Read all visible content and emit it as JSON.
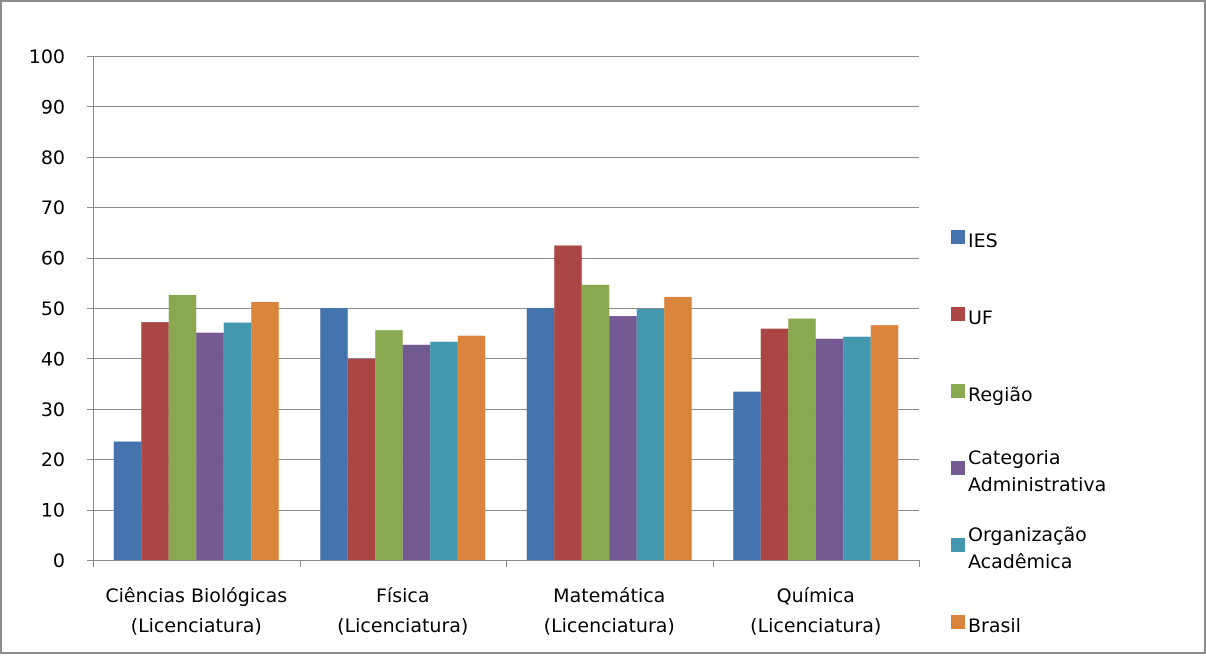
{
  "chart_data": {
    "type": "bar",
    "title": "",
    "xlabel": "",
    "ylabel": "",
    "ylim": [
      0,
      100
    ],
    "yticks": [
      0,
      10,
      20,
      30,
      40,
      50,
      60,
      70,
      80,
      90,
      100
    ],
    "grid": "horizontal",
    "legend_position": "right",
    "categories": [
      [
        "Ciências Biológicas",
        "(Licenciatura)"
      ],
      [
        "Física",
        "(Licenciatura)"
      ],
      [
        "Matemática",
        "(Licenciatura)"
      ],
      [
        "Química",
        "(Licenciatura)"
      ]
    ],
    "series": [
      {
        "name": [
          "IES"
        ],
        "color": "#4573AE",
        "values": [
          23.5,
          50.0,
          50.0,
          33.4
        ]
      },
      {
        "name": [
          "UF"
        ],
        "color": "#AA4644",
        "values": [
          47.2,
          39.9,
          62.4,
          45.9
        ]
      },
      {
        "name": [
          "Região"
        ],
        "color": "#8AA84F",
        "values": [
          52.6,
          45.6,
          54.6,
          47.9
        ]
      },
      {
        "name": [
          "Categoria",
          "Administrativa"
        ],
        "color": "#735A93",
        "values": [
          45.1,
          42.7,
          48.4,
          43.9
        ]
      },
      {
        "name": [
          "Organização",
          "Acadêmica"
        ],
        "color": "#4198AF",
        "values": [
          47.1,
          43.3,
          49.8,
          44.3
        ]
      },
      {
        "name": [
          "Brasil"
        ],
        "color": "#DB843D",
        "values": [
          51.2,
          44.5,
          52.2,
          46.6
        ]
      }
    ]
  }
}
